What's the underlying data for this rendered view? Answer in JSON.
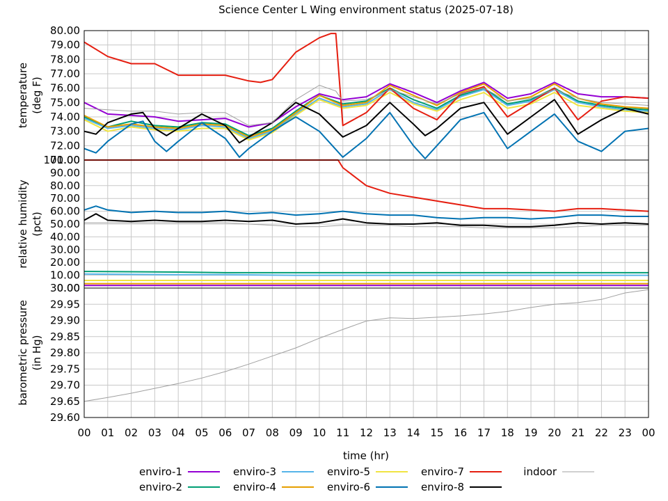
{
  "chart_data": {
    "type": "line",
    "title": "Science Center L Wing environment status (2025-07-18)",
    "xlabel": "time (hr)",
    "xlim": [
      0,
      24
    ],
    "x_ticks": [
      "00",
      "01",
      "02",
      "03",
      "04",
      "05",
      "06",
      "07",
      "08",
      "09",
      "10",
      "11",
      "12",
      "13",
      "14",
      "15",
      "16",
      "17",
      "18",
      "19",
      "20",
      "21",
      "22",
      "23",
      "00"
    ],
    "grid": true,
    "legend_placement": "bottom",
    "panels": [
      {
        "id": "temperature",
        "ylabel": [
          "temperature",
          "(deg F)"
        ],
        "ylim": [
          71.0,
          80.0
        ],
        "y_ticks": [
          "80.00",
          "79.00",
          "78.00",
          "77.00",
          "76.00",
          "75.00",
          "74.00",
          "73.00",
          "72.00",
          "71.00"
        ],
        "series": [
          {
            "name": "enviro-1",
            "x": [
              0,
              1,
              2,
              3,
              4,
              5,
              6,
              7,
              8,
              9,
              10,
              11,
              12,
              13,
              14,
              15,
              16,
              17,
              18,
              19,
              20,
              21,
              22,
              23,
              24
            ],
            "y": [
              75.0,
              74.2,
              74.1,
              74.0,
              73.7,
              73.8,
              73.9,
              73.3,
              73.6,
              74.7,
              75.6,
              75.2,
              75.4,
              76.3,
              75.7,
              75.0,
              75.8,
              76.4,
              75.3,
              75.6,
              76.4,
              75.6,
              75.4,
              75.4,
              75.3
            ]
          },
          {
            "name": "enviro-2",
            "x": [
              0,
              1,
              2,
              3,
              4,
              5,
              6,
              7,
              8,
              9,
              10,
              11,
              12,
              13,
              14,
              15,
              16,
              17,
              18,
              19,
              20,
              21,
              22,
              23,
              24
            ],
            "y": [
              74.0,
              73.3,
              73.7,
              73.4,
              73.3,
              73.6,
              73.5,
              72.7,
              73.2,
              74.4,
              75.5,
              74.9,
              75.1,
              76.0,
              75.2,
              74.6,
              75.5,
              76.0,
              74.9,
              75.2,
              76.0,
              75.1,
              74.8,
              74.6,
              74.5
            ]
          },
          {
            "name": "enviro-3",
            "x": [
              0,
              1,
              2,
              3,
              4,
              5,
              6,
              7,
              8,
              9,
              10,
              11,
              12,
              13,
              14,
              15,
              16,
              17,
              18,
              19,
              20,
              21,
              22,
              23,
              24
            ],
            "y": [
              73.9,
              73.2,
              73.4,
              73.2,
              73.1,
              73.4,
              73.3,
              72.5,
              73.0,
              74.2,
              75.3,
              74.7,
              74.9,
              75.9,
              75.0,
              74.5,
              75.4,
              75.9,
              74.8,
              75.1,
              75.9,
              75.0,
              74.7,
              74.5,
              74.4
            ]
          },
          {
            "name": "enviro-4",
            "x": [
              0,
              1,
              2,
              3,
              4,
              5,
              6,
              7,
              8,
              9,
              10,
              11,
              12,
              13,
              14,
              15,
              16,
              17,
              18,
              19,
              20,
              21,
              22,
              23,
              24
            ],
            "y": [
              74.1,
              73.3,
              73.5,
              73.3,
              73.2,
              73.5,
              73.4,
              72.6,
              73.1,
              74.3,
              75.5,
              74.8,
              75.0,
              76.2,
              75.5,
              74.8,
              75.7,
              76.3,
              75.1,
              75.4,
              76.3,
              75.3,
              74.9,
              74.7,
              74.6
            ]
          },
          {
            "name": "enviro-5",
            "x": [
              0,
              1,
              2,
              3,
              4,
              5,
              6,
              7,
              8,
              9,
              10,
              11,
              12,
              13,
              14,
              15,
              16,
              17,
              18,
              19,
              20,
              21,
              22,
              23,
              24
            ],
            "y": [
              73.8,
              73.0,
              73.3,
              73.1,
              73.0,
              73.2,
              73.2,
              72.4,
              72.9,
              74.1,
              75.2,
              74.6,
              74.8,
              75.7,
              74.9,
              74.4,
              75.2,
              75.7,
              74.6,
              74.9,
              75.7,
              74.8,
              74.6,
              74.4,
              74.3
            ]
          },
          {
            "name": "enviro-6",
            "x": [
              0,
              0.5,
              1,
              2,
              2.5,
              3,
              3.5,
              4,
              5,
              6,
              6.6,
              7,
              8,
              9,
              10,
              11,
              12,
              13,
              14,
              14.5,
              15,
              16,
              17,
              18,
              19,
              20,
              21,
              22,
              23,
              24
            ],
            "y": [
              71.8,
              71.5,
              72.3,
              73.5,
              73.7,
              72.3,
              71.6,
              72.3,
              73.6,
              72.5,
              71.2,
              71.8,
              73.0,
              74.0,
              73.0,
              71.2,
              72.5,
              74.3,
              72.0,
              71.1,
              72.0,
              73.8,
              74.3,
              71.8,
              73.0,
              74.2,
              72.3,
              71.6,
              73.0,
              73.2
            ]
          },
          {
            "name": "enviro-7",
            "x": [
              0,
              1,
              2,
              3,
              4,
              5,
              6,
              7,
              7.5,
              8,
              9,
              10,
              10.5,
              10.7,
              11,
              12,
              13,
              14,
              15,
              16,
              17,
              18,
              19,
              20,
              21,
              22,
              23,
              24
            ],
            "y": [
              79.2,
              78.2,
              77.7,
              77.7,
              76.9,
              76.9,
              76.9,
              76.5,
              76.4,
              76.6,
              78.5,
              79.5,
              79.8,
              79.8,
              73.4,
              74.3,
              76.0,
              74.6,
              73.8,
              75.6,
              76.1,
              74.0,
              75.0,
              76.0,
              73.8,
              75.1,
              75.4,
              75.3
            ]
          },
          {
            "name": "enviro-8",
            "x": [
              0,
              0.5,
              1,
              2,
              2.5,
              3,
              3.5,
              4,
              5,
              6,
              6.6,
              7,
              8,
              9,
              10,
              11,
              12,
              13,
              14,
              14.5,
              15,
              16,
              17,
              18,
              19,
              20,
              21,
              22,
              23,
              24
            ],
            "y": [
              73.0,
              72.8,
              73.6,
              74.2,
              74.3,
              73.2,
              72.7,
              73.2,
              74.2,
              73.4,
              72.2,
              72.6,
              73.6,
              75.0,
              74.2,
              72.6,
              73.4,
              75.0,
              73.5,
              72.7,
              73.2,
              74.6,
              75.0,
              72.8,
              74.0,
              75.2,
              72.8,
              73.8,
              74.6,
              74.2
            ]
          },
          {
            "name": "indoor",
            "x": [
              0,
              1,
              2,
              3,
              4,
              5,
              6,
              7,
              8,
              9,
              10,
              10.7,
              11,
              12,
              13,
              14,
              15,
              16,
              17,
              18,
              19,
              20,
              21,
              22,
              23,
              24
            ],
            "y": [
              74.6,
              74.5,
              74.4,
              74.4,
              74.2,
              74.3,
              74.3,
              73.4,
              73.6,
              75.2,
              76.2,
              75.8,
              75.1,
              75.2,
              75.9,
              75.4,
              74.9,
              75.6,
              76.0,
              75.1,
              75.3,
              75.9,
              75.3,
              75.0,
              74.9,
              74.8
            ]
          }
        ]
      },
      {
        "id": "humidity",
        "ylabel": [
          "relative humidity",
          "(pct)"
        ],
        "ylim": [
          0,
          100
        ],
        "y_ticks": [
          "100.00",
          "90.00",
          "80.00",
          "70.00",
          "60.00",
          "50.00",
          "40.00",
          "30.00",
          "20.00",
          "10.00",
          "0.00"
        ],
        "series": [
          {
            "name": "enviro-1",
            "x": [
              0,
              24
            ],
            "y": [
              2.0,
              2.0
            ]
          },
          {
            "name": "enviro-2",
            "x": [
              0,
              4,
              6,
              8,
              24
            ],
            "y": [
              13.0,
              12.5,
              12.0,
              12.0,
              12.0
            ]
          },
          {
            "name": "enviro-3",
            "x": [
              0,
              4,
              6,
              9,
              12,
              24
            ],
            "y": [
              11.0,
              10.5,
              10.5,
              10.0,
              10.0,
              10.0
            ]
          },
          {
            "name": "enviro-4",
            "x": [
              0,
              24
            ],
            "y": [
              3.5,
              3.5
            ]
          },
          {
            "name": "enviro-5",
            "x": [
              0,
              24
            ],
            "y": [
              6.0,
              6.0
            ]
          },
          {
            "name": "enviro-6",
            "x": [
              0,
              0.5,
              1,
              2,
              3,
              4,
              5,
              6,
              7,
              8,
              9,
              10,
              11,
              12,
              13,
              14,
              15,
              16,
              17,
              18,
              19,
              20,
              21,
              22,
              23,
              24
            ],
            "y": [
              61.0,
              64.0,
              61.0,
              59.0,
              60.0,
              59.0,
              59.0,
              60.0,
              58.0,
              59.0,
              57.0,
              58.0,
              60.0,
              58.0,
              57.0,
              57.0,
              55.0,
              54.0,
              55.0,
              55.0,
              54.0,
              55.0,
              57.0,
              57.0,
              56.0,
              56.0
            ]
          },
          {
            "name": "enviro-7",
            "x": [
              0,
              5,
              10.8,
              11,
              12,
              13,
              14,
              15,
              16,
              17,
              18,
              19,
              20,
              21,
              22,
              23,
              24
            ],
            "y": [
              100.0,
              100.0,
              100.0,
              94.0,
              80.0,
              74.0,
              71.0,
              68.0,
              65.0,
              62.0,
              62.0,
              61.0,
              60.0,
              62.0,
              62.0,
              61.0,
              60.0
            ]
          },
          {
            "name": "enviro-8",
            "x": [
              0,
              0.5,
              1,
              2,
              3,
              4,
              5,
              6,
              7,
              8,
              9,
              10,
              11,
              12,
              13,
              14,
              15,
              16,
              17,
              18,
              19,
              20,
              21,
              22,
              23,
              24
            ],
            "y": [
              53.0,
              58.0,
              53.0,
              52.0,
              53.0,
              52.0,
              52.0,
              53.0,
              52.0,
              53.0,
              50.0,
              51.0,
              54.0,
              51.0,
              50.0,
              50.0,
              51.0,
              49.0,
              49.0,
              48.0,
              48.0,
              49.0,
              51.0,
              50.0,
              51.0,
              50.0
            ]
          },
          {
            "name": "indoor",
            "x": [
              0,
              1,
              2,
              3,
              4,
              5,
              6,
              7,
              8,
              9,
              10,
              11,
              12,
              13,
              14,
              15,
              16,
              17,
              18,
              19,
              20,
              21,
              22,
              23,
              24
            ],
            "y": [
              51.0,
              51.0,
              51.0,
              51.0,
              51.0,
              51.0,
              51.0,
              50.0,
              49.0,
              48.0,
              48.0,
              49.0,
              49.0,
              49.0,
              48.0,
              48.0,
              48.0,
              47.0,
              47.0,
              47.0,
              47.0,
              48.0,
              49.0,
              49.0,
              49.0
            ]
          }
        ]
      },
      {
        "id": "pressure",
        "ylabel": [
          "barometric pressure",
          "(in Hg)"
        ],
        "ylim": [
          29.6,
          30.0
        ],
        "y_ticks": [
          "30.00",
          "29.95",
          "29.90",
          "29.85",
          "29.80",
          "29.75",
          "29.70",
          "29.65",
          "29.60"
        ],
        "series": [
          {
            "name": "indoor",
            "x": [
              0,
              1,
              2,
              3,
              4,
              5,
              6,
              7,
              8,
              9,
              10,
              11,
              12,
              13,
              14,
              15,
              16,
              17,
              18,
              19,
              20,
              21,
              22,
              23,
              24
            ],
            "y": [
              29.65,
              29.662,
              29.675,
              29.69,
              29.705,
              29.722,
              29.742,
              29.765,
              29.79,
              29.815,
              29.845,
              29.872,
              29.898,
              29.908,
              29.906,
              29.91,
              29.914,
              29.92,
              29.928,
              29.94,
              29.95,
              29.955,
              29.965,
              29.985,
              29.995
            ]
          }
        ]
      }
    ],
    "legend": [
      {
        "name": "enviro-1",
        "color": "#9400d3"
      },
      {
        "name": "enviro-2",
        "color": "#009e73"
      },
      {
        "name": "enviro-3",
        "color": "#56b4e9"
      },
      {
        "name": "enviro-4",
        "color": "#e69f00"
      },
      {
        "name": "enviro-5",
        "color": "#f0e442"
      },
      {
        "name": "enviro-6",
        "color": "#0072b2"
      },
      {
        "name": "enviro-7",
        "color": "#e51e10"
      },
      {
        "name": "enviro-8",
        "color": "#000000"
      },
      {
        "name": "indoor",
        "color": "#a0a0a0"
      }
    ]
  }
}
